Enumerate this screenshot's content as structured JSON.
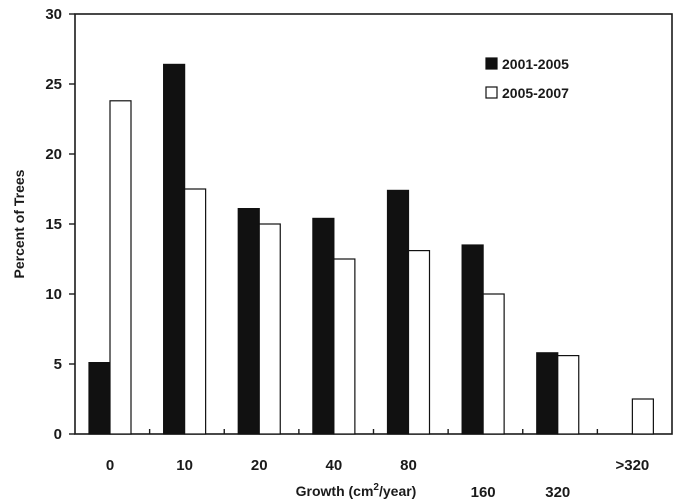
{
  "chart_data": {
    "type": "bar",
    "categories": [
      "0",
      "10",
      "20",
      "40",
      "80",
      "160",
      "320",
      ">320"
    ],
    "series": [
      {
        "name": "2001-2005",
        "values": [
          5.1,
          26.4,
          16.1,
          15.4,
          17.4,
          13.5,
          5.8,
          0
        ],
        "color": "#111111"
      },
      {
        "name": "2005-2007",
        "values": [
          23.8,
          17.5,
          15.0,
          12.5,
          13.1,
          10.0,
          5.6,
          2.5
        ],
        "color": "#ffffff"
      }
    ],
    "title": "",
    "xlabel_prefix": "Growth (cm",
    "xlabel_sup": "2",
    "xlabel_suffix": "/year)",
    "ylabel": "Percent of Trees",
    "ylim": [
      0,
      30
    ],
    "yticks": [
      "0",
      "5",
      "10",
      "15",
      "20",
      "25",
      "30"
    ],
    "grid": false,
    "legend_position": "top-right"
  }
}
